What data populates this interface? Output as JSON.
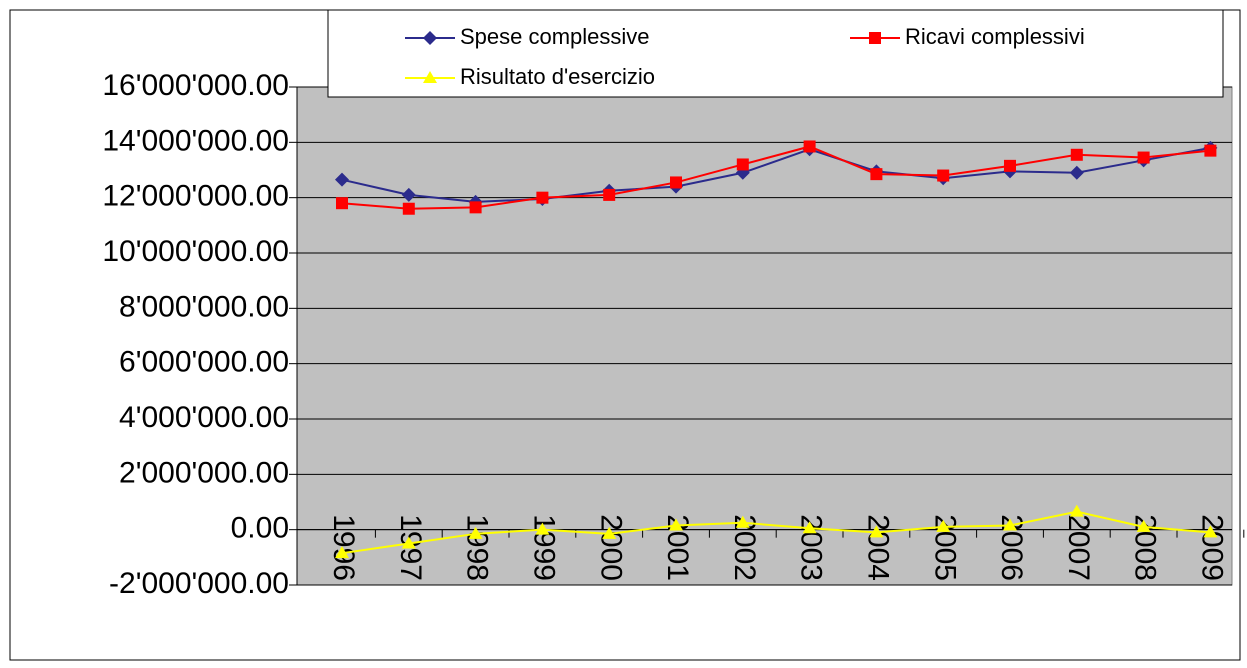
{
  "chart_data": {
    "type": "line",
    "categories": [
      "1996",
      "1997",
      "1998",
      "1999",
      "2000",
      "2001",
      "2002",
      "2003",
      "2004",
      "2005",
      "2006",
      "2007",
      "2008",
      "2009"
    ],
    "series": [
      {
        "name": "Spese complessive",
        "color": "#2b2b8c",
        "marker": "diamond",
        "values": [
          12650000,
          12100000,
          11850000,
          11950000,
          12250000,
          12400000,
          12900000,
          13750000,
          12950000,
          12700000,
          12950000,
          12900000,
          13350000,
          13800000
        ]
      },
      {
        "name": "Ricavi complessivi",
        "color": "#ff0000",
        "marker": "square",
        "values": [
          11800000,
          11600000,
          11650000,
          12000000,
          12100000,
          12550000,
          13200000,
          13850000,
          12850000,
          12800000,
          13150000,
          13550000,
          13450000,
          13700000
        ]
      },
      {
        "name": "Risultato d'esercizio",
        "color": "#ffff00",
        "marker": "triangle",
        "values": [
          -850000,
          -500000,
          -150000,
          0,
          -150000,
          150000,
          250000,
          50000,
          -100000,
          100000,
          150000,
          650000,
          100000,
          -100000
        ]
      }
    ],
    "ylim": [
      -2000000,
      16000000
    ],
    "yticks": [
      {
        "value": -2000000,
        "label": "-2'000'000.00"
      },
      {
        "value": 0,
        "label": "0.00"
      },
      {
        "value": 2000000,
        "label": "2'000'000.00"
      },
      {
        "value": 4000000,
        "label": "4'000'000.00"
      },
      {
        "value": 6000000,
        "label": "6'000'000.00"
      },
      {
        "value": 8000000,
        "label": "8'000'000.00"
      },
      {
        "value": 10000000,
        "label": "10'000'000.00"
      },
      {
        "value": 12000000,
        "label": "12'000'000.00"
      },
      {
        "value": 14000000,
        "label": "14'000'000.00"
      },
      {
        "value": 16000000,
        "label": "16'000'000.00"
      }
    ],
    "grid": true,
    "legend": "top",
    "plot_background": "#c0c0c0"
  }
}
